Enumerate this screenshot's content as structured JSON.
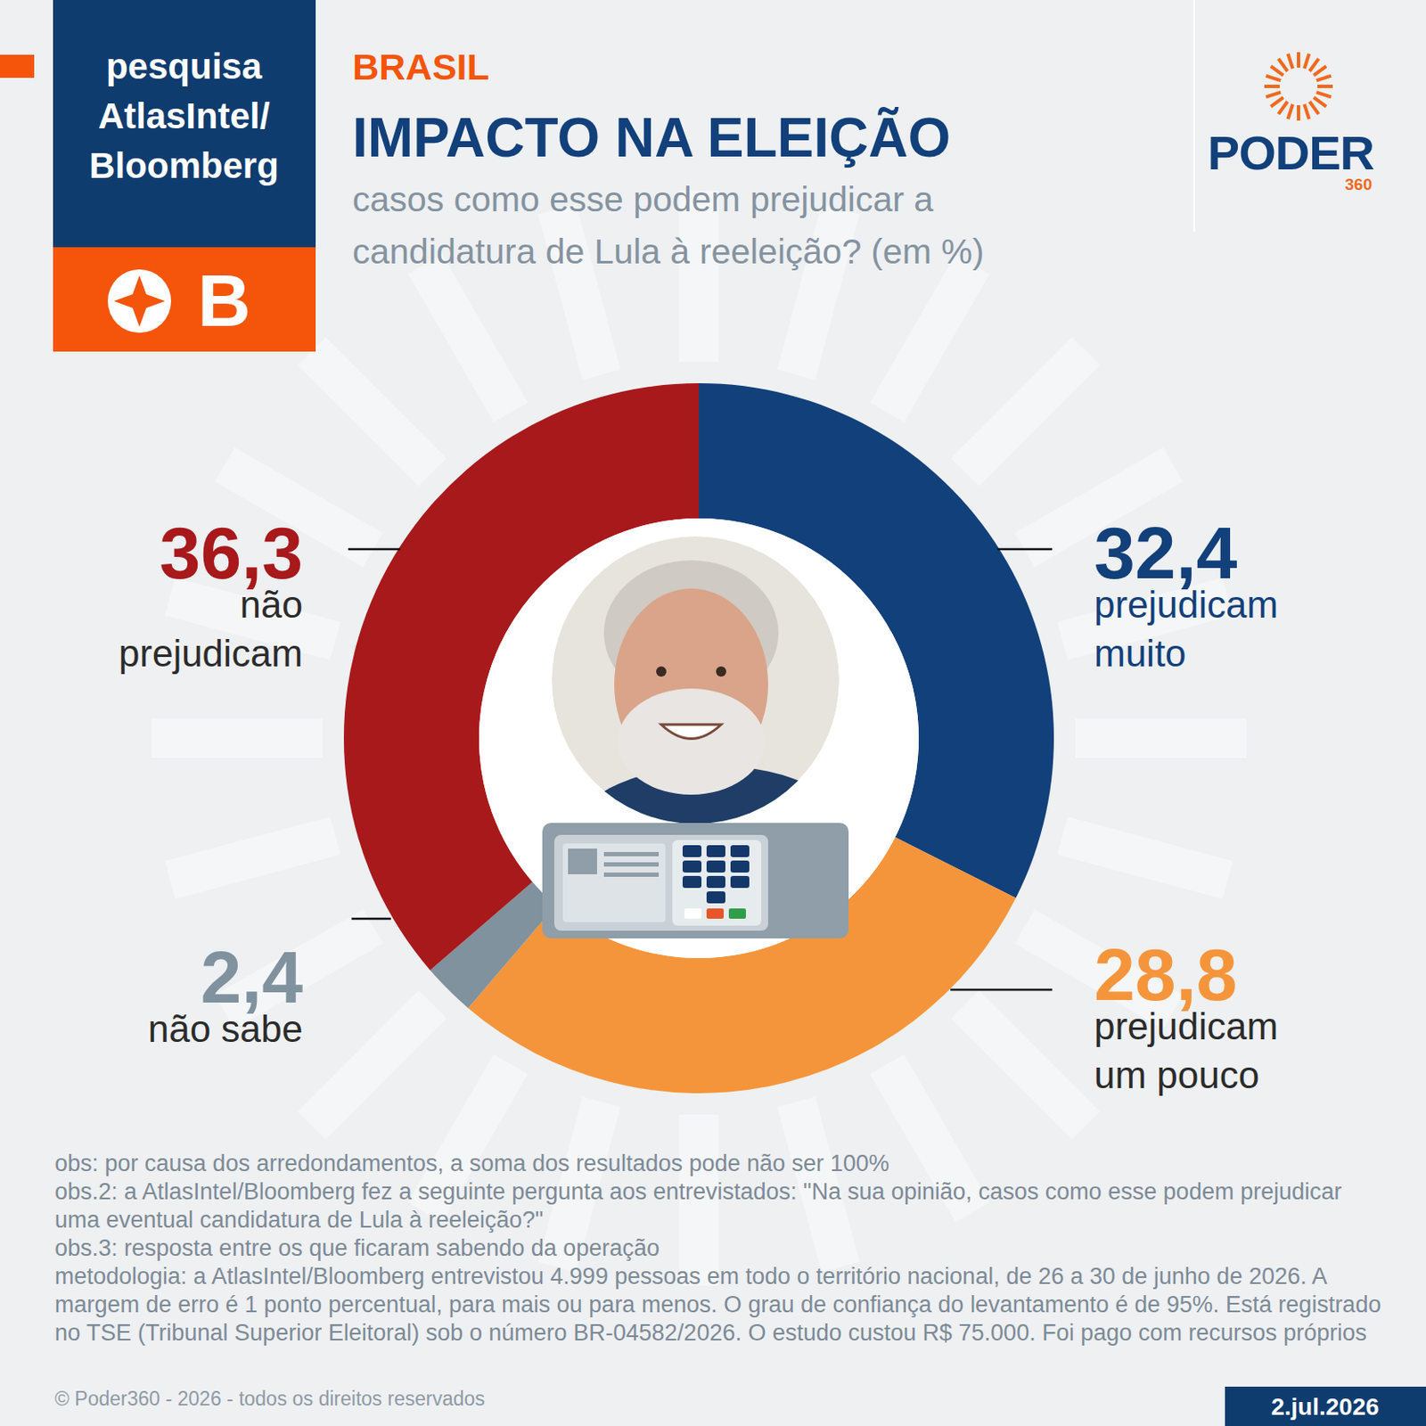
{
  "chart_data": {
    "type": "donut",
    "title": "IMPACTO NA ELEIÇÃO",
    "subtitle": "casos como esse podem prejudicar a candidatura de Lula à reeleição? (em %)",
    "categories": [
      "prejudicam muito",
      "prejudicam um pouco",
      "não sabe",
      "não prejudicam"
    ],
    "values": [
      32.4,
      28.8,
      2.4,
      36.3
    ],
    "value_labels": [
      "32,4",
      "28,8",
      "2,4",
      "36,3"
    ],
    "colors": [
      "#12407a",
      "#f5953b",
      "#7f929e",
      "#a8191b"
    ],
    "data_labels": true
  },
  "header": {
    "survey": [
      "pesquisa",
      "AtlasIntel/",
      "Bloomberg"
    ],
    "badge": "B",
    "section": "BRASIL",
    "brand": "PODER",
    "brand_number": "360"
  },
  "footer": {
    "notes": [
      "obs: por causa dos arredondamentos, a soma dos resultados pode não ser 100%",
      "obs.2: a AtlasIntel/Bloomberg fez a seguinte pergunta aos entrevistados: \"Na sua opinião, casos como esse podem prejudicar uma eventual candidatura de Lula à reeleição?\"",
      "obs.3: resposta entre os que ficaram sabendo da operação",
      "metodologia: a AtlasIntel/Bloomberg entrevistou 4.999 pessoas em todo o território nacional, de 26 a 30 de junho de 2026. A margem de erro é 1 ponto percentual, para mais ou para menos. O grau de confiança do levantamento é de 95%. Está registrado no TSE (Tribunal Superior Eleitoral) sob o número BR-04582/2026. O estudo custou R$ 75.000. Foi pago com recursos próprios"
    ],
    "copyright": "© Poder360 - 2026 - todos os direitos reservados",
    "date": "2.jul.2026"
  }
}
